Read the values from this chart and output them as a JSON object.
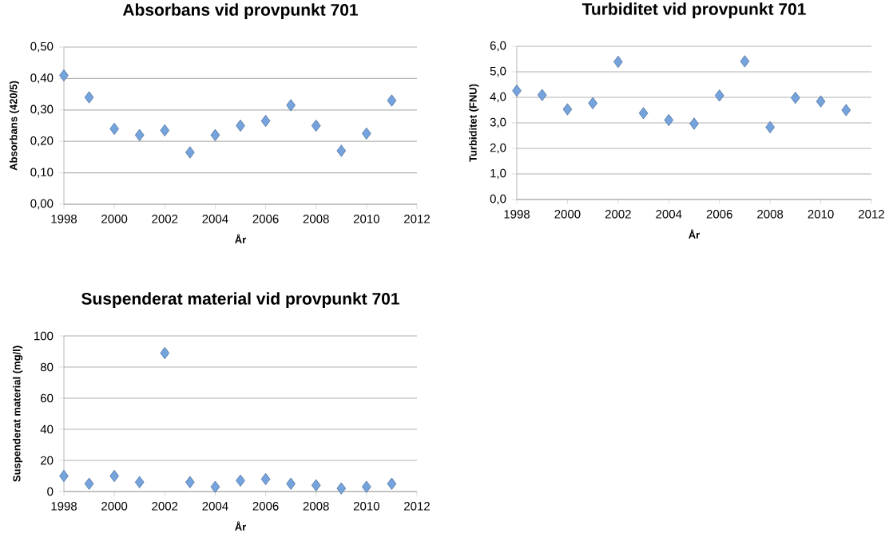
{
  "chart_data": [
    {
      "type": "scatter",
      "title": "Absorbans vid provpunkt 701",
      "xlabel": "År",
      "ylabel": "Absorbans (420/5)",
      "color": "#74a3dd",
      "marker": "diamond",
      "grid": "y",
      "x": [
        1998,
        1999,
        2000,
        2001,
        2002,
        2003,
        2004,
        2005,
        2006,
        2007,
        2008,
        2009,
        2010,
        2011
      ],
      "values": [
        0.41,
        0.34,
        0.24,
        0.22,
        0.235,
        0.165,
        0.22,
        0.25,
        0.265,
        0.315,
        0.25,
        0.17,
        0.225,
        0.33
      ],
      "xlim": [
        1998,
        2012
      ],
      "xticks": [
        1998,
        2000,
        2002,
        2004,
        2006,
        2008,
        2010,
        2012
      ],
      "ylim": [
        0,
        0.5
      ],
      "yticks": [
        {
          "value": 0,
          "label": "0,00"
        },
        {
          "value": 0.1,
          "label": "0,10"
        },
        {
          "value": 0.2,
          "label": "0,20"
        },
        {
          "value": 0.3,
          "label": "0,30"
        },
        {
          "value": 0.4,
          "label": "0,40"
        },
        {
          "value": 0.5,
          "label": "0,50"
        }
      ]
    },
    {
      "type": "scatter",
      "title": "Turbiditet vid provpunkt 701",
      "xlabel": "År",
      "ylabel": "Turbiditet (FNU)",
      "color": "#74a3dd",
      "marker": "diamond",
      "grid": "y",
      "x": [
        1998,
        1999,
        2000,
        2001,
        2002,
        2003,
        2004,
        2005,
        2006,
        2007,
        2008,
        2009,
        2010,
        2011
      ],
      "values": [
        4.26,
        4.09,
        3.53,
        3.77,
        5.39,
        3.38,
        3.11,
        2.97,
        4.07,
        5.41,
        2.83,
        3.98,
        3.84,
        3.5
      ],
      "xlim": [
        1998,
        2012
      ],
      "xticks": [
        1998,
        2000,
        2002,
        2004,
        2006,
        2008,
        2010,
        2012
      ],
      "ylim": [
        0,
        6
      ],
      "yticks": [
        {
          "value": 0,
          "label": "0,0"
        },
        {
          "value": 1,
          "label": "1,0"
        },
        {
          "value": 2,
          "label": "2,0"
        },
        {
          "value": 3,
          "label": "3,0"
        },
        {
          "value": 4,
          "label": "4,0"
        },
        {
          "value": 5,
          "label": "5,0"
        },
        {
          "value": 6,
          "label": "6,0"
        }
      ]
    },
    {
      "type": "scatter",
      "title": "Suspenderat material vid provpunkt 701",
      "xlabel": "År",
      "ylabel": "Suspenderat material (mg/l)",
      "color": "#74a3dd",
      "marker": "diamond",
      "grid": "y",
      "x": [
        1998,
        1999,
        2000,
        2001,
        2002,
        2003,
        2004,
        2005,
        2006,
        2007,
        2008,
        2009,
        2010,
        2011
      ],
      "values": [
        10,
        5,
        10,
        6,
        89,
        6,
        3,
        7,
        8,
        5,
        4,
        2,
        3,
        5
      ],
      "xlim": [
        1998,
        2012
      ],
      "xticks": [
        1998,
        2000,
        2002,
        2004,
        2006,
        2008,
        2010,
        2012
      ],
      "ylim": [
        0,
        100
      ],
      "yticks": [
        0,
        20,
        40,
        60,
        80,
        100
      ]
    }
  ]
}
